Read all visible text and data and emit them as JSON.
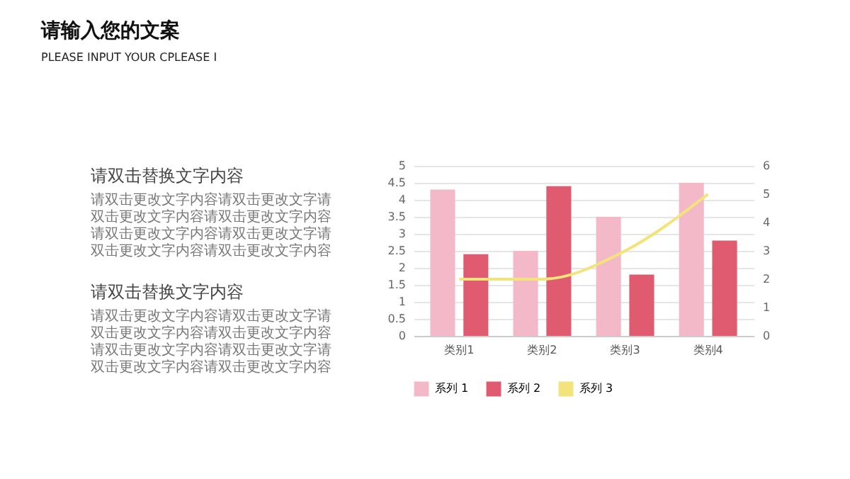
{
  "chart_data": {
    "type": "bar",
    "title": "请输入您的文案",
    "subtitle": "PLEASE INPUT YOUR CPLEASE I",
    "annotations": [
      "请双击替换文字内容",
      "请双击更改文字内容请双击更改文字请双击更改文字内容请双击更改文字内容请双击更改文字内容请双击更改文字请双击更改文字内容请双击更改文字内容",
      "请双击替换文字内容",
      "请双击更改文字内容请双击更改文字请双击更改文字内容请双击更改文字内容请双击更改文字内容请双击更改文字请双击更改文字内容请双击更改文字内容"
    ],
    "categories": [
      "类别1",
      "类别2",
      "类别3",
      "类别4"
    ],
    "series": [
      {
        "name": "系列 1",
        "color": "#f4b9c9",
        "values": [
          4.3,
          2.5,
          3.5,
          4.5
        ]
      },
      {
        "name": "系列 2",
        "color": "#e05b6f",
        "values": [
          2.4,
          4.4,
          1.8,
          2.8
        ]
      },
      {
        "name": "系列 3",
        "type": "line",
        "axis": "y2",
        "color": "#f2e47a",
        "values": [
          2,
          2,
          3,
          5
        ]
      }
    ],
    "ylim": [
      0,
      5
    ],
    "yticks": [
      0,
      0.5,
      1,
      1.5,
      2,
      2.5,
      3,
      3.5,
      4,
      4.5,
      5
    ],
    "y2lim": [
      0,
      6
    ],
    "y2ticks": [
      0,
      1,
      2,
      3,
      4,
      5,
      6
    ],
    "grid": "y",
    "legend": "bottom",
    "marker": "none",
    "line_style": "solid"
  }
}
